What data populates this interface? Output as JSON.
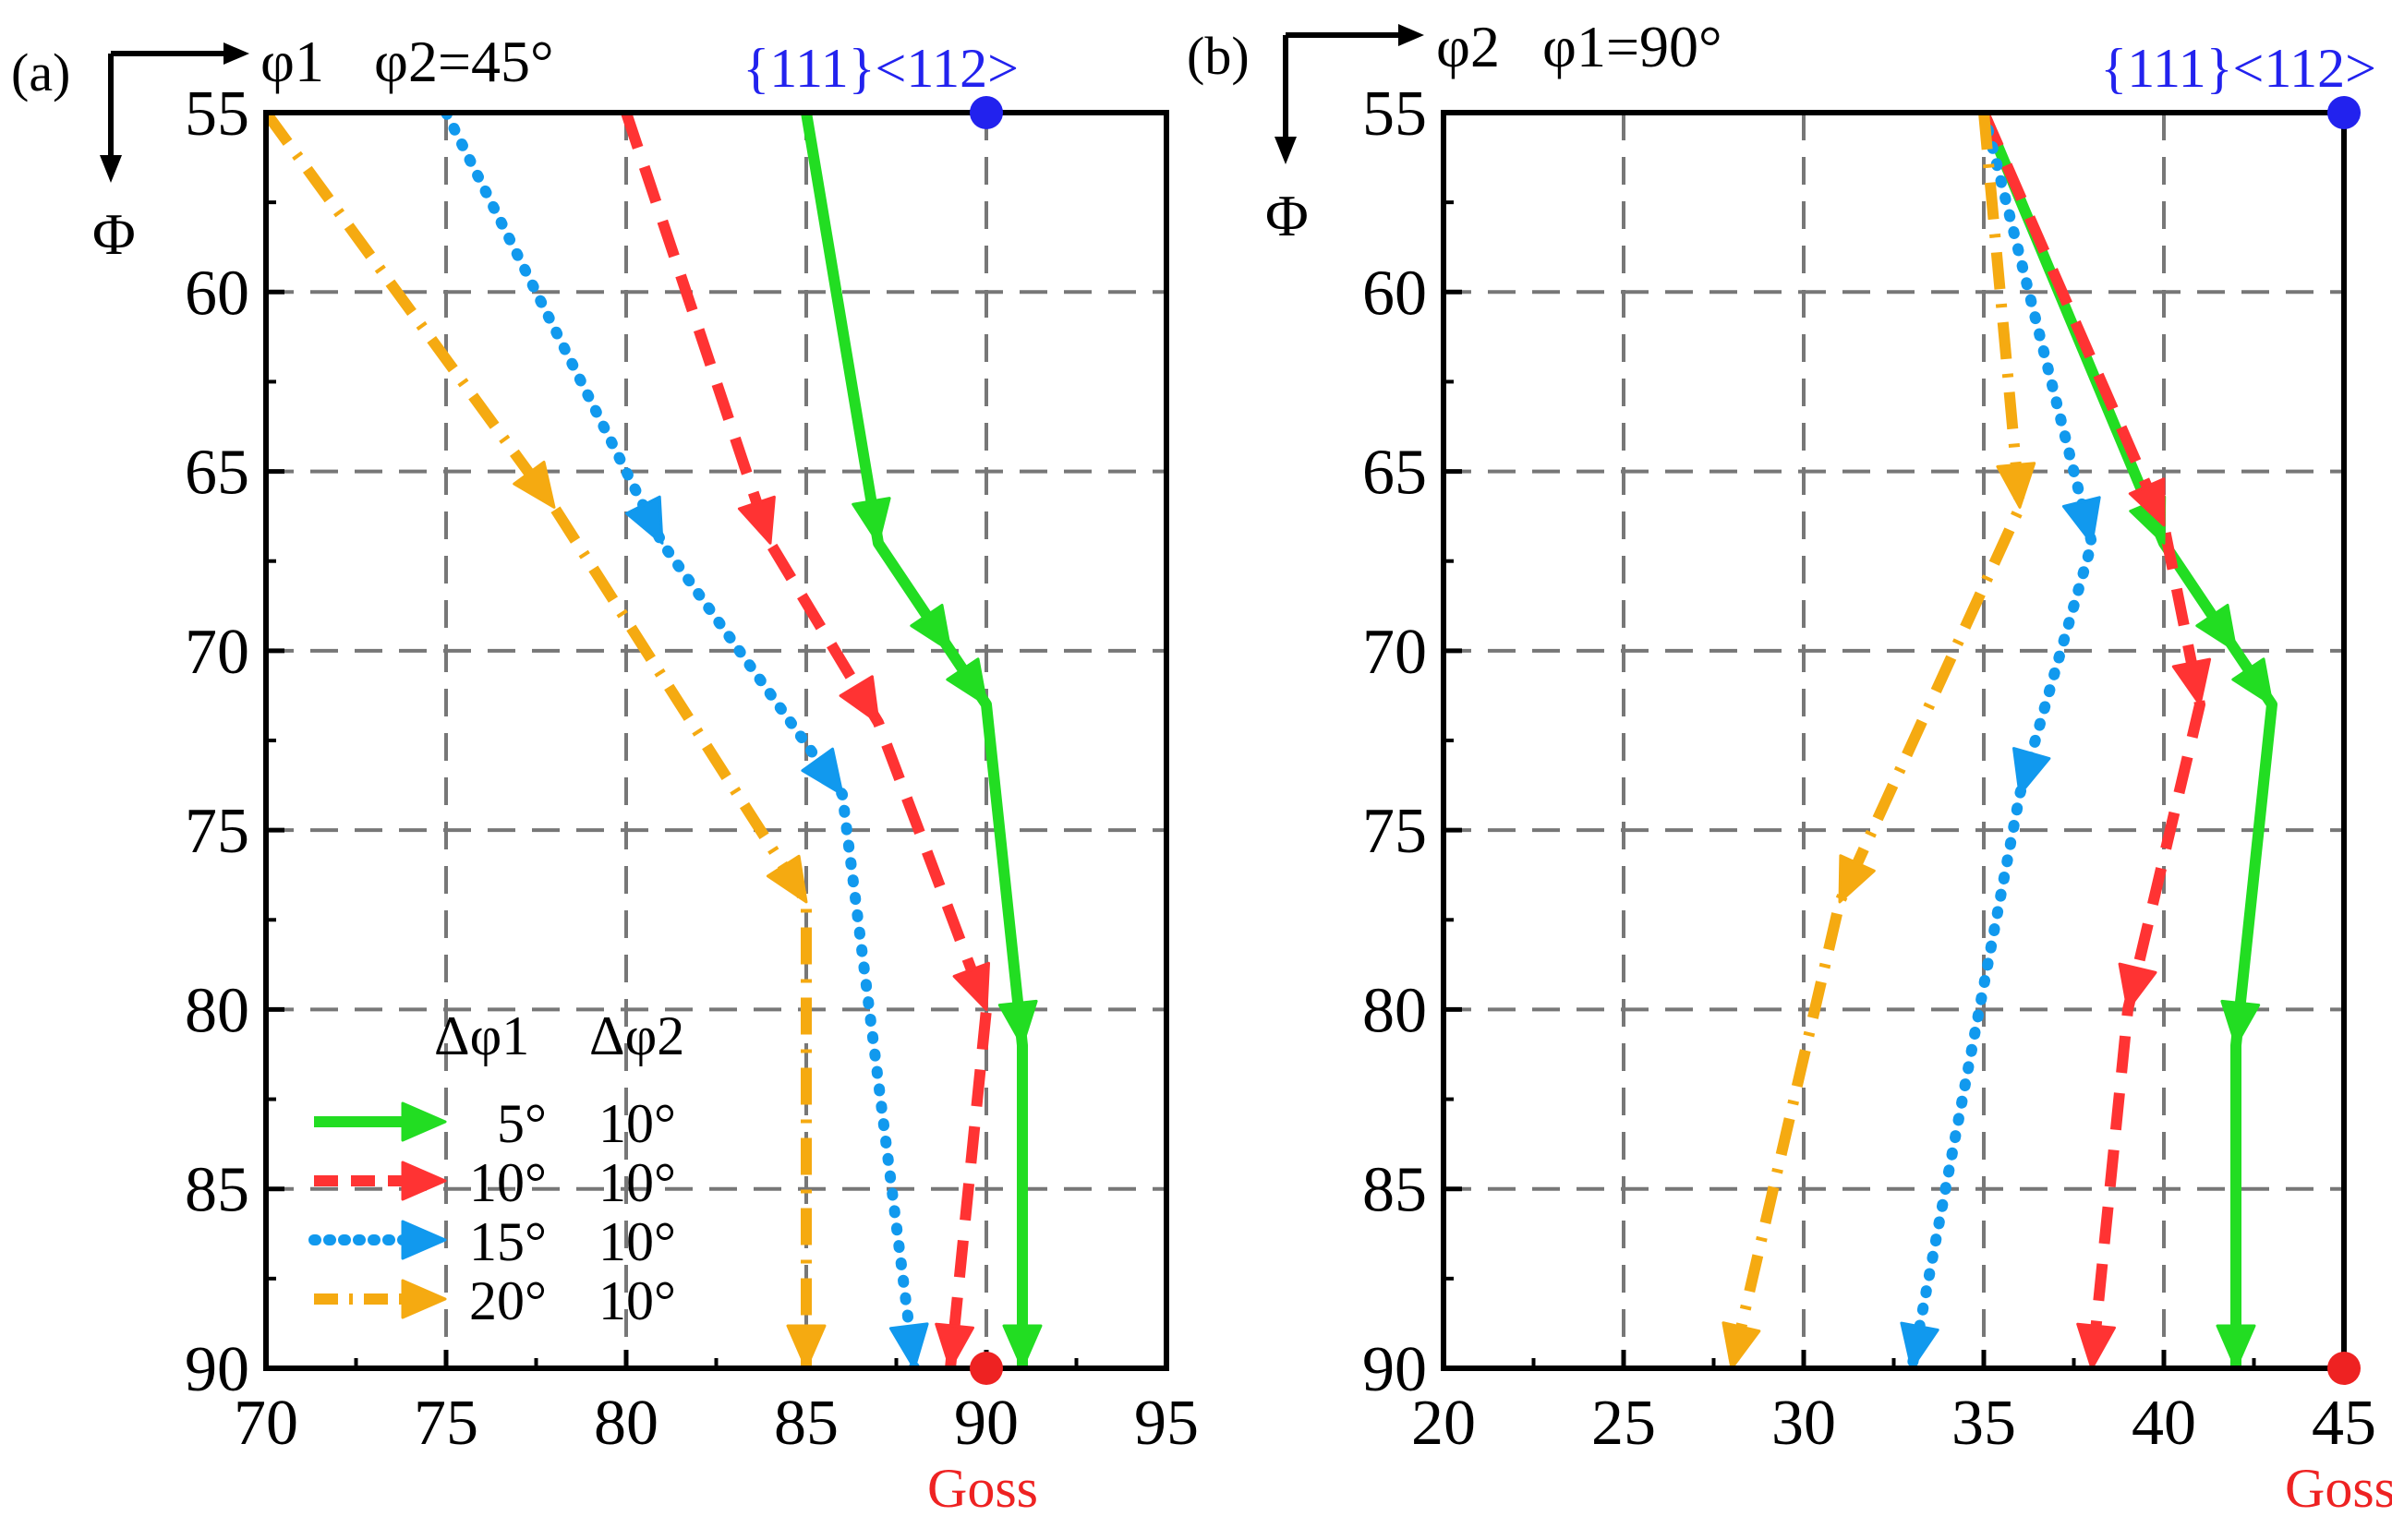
{
  "chart_data": [
    {
      "type": "line",
      "panel_label": "(a)",
      "title": "φ2=45°",
      "axis_arrow_x_label": "φ1",
      "axis_arrow_y_label": "Φ",
      "xlabel": "φ1",
      "ylabel": "Φ",
      "xlim": [
        70,
        95
      ],
      "ylim": [
        55,
        90
      ],
      "y_inverted": true,
      "xticks": [
        "70",
        "75",
        "80",
        "85",
        "90",
        "95"
      ],
      "yticks": [
        "55",
        "60",
        "65",
        "70",
        "75",
        "80",
        "85",
        "90"
      ],
      "grid": true,
      "legend_position": "bottom-left",
      "legend_header": [
        "Δφ1",
        "Δφ2"
      ],
      "series": [
        {
          "name": "5°",
          "name2": "10°",
          "color": "#22dd22",
          "style": "solid",
          "points": [
            [
              85,
              55
            ],
            [
              87,
              67
            ],
            [
              90,
              71.5
            ],
            [
              91,
              81
            ],
            [
              91,
              90
            ]
          ],
          "arrow_points": [
            [
              87,
              67
            ],
            [
              89,
              70
            ],
            [
              90,
              71.5
            ],
            [
              91,
              81
            ],
            [
              91,
              90
            ]
          ]
        },
        {
          "name": "10°",
          "name2": "10°",
          "color": "#ff3333",
          "style": "dashed",
          "points": [
            [
              80,
              55
            ],
            [
              84,
              67
            ],
            [
              87,
              72
            ],
            [
              90,
              80
            ],
            [
              89,
              90
            ]
          ],
          "arrow_points": [
            [
              84,
              67
            ],
            [
              87,
              72
            ],
            [
              90,
              80
            ],
            [
              89,
              90
            ]
          ]
        },
        {
          "name": "15°",
          "name2": "10°",
          "color": "#1199ee",
          "style": "dotted",
          "points": [
            [
              75,
              55
            ],
            [
              81,
              67
            ],
            [
              86,
              74
            ],
            [
              88,
              90
            ]
          ],
          "arrow_points": [
            [
              81,
              67
            ],
            [
              86,
              74
            ],
            [
              88,
              90
            ]
          ]
        },
        {
          "name": "20°",
          "name2": "10°",
          "color": "#f5aa11",
          "style": "dashdot",
          "points": [
            [
              70,
              55
            ],
            [
              78,
              66
            ],
            [
              85,
              77
            ],
            [
              85,
              90
            ]
          ],
          "arrow_points": [
            [
              78,
              66
            ],
            [
              85,
              77
            ],
            [
              85,
              90
            ]
          ]
        }
      ],
      "special_points": [
        {
          "label": "{111}<112>",
          "x": 90,
          "y": 55,
          "color": "#2222ee"
        },
        {
          "label": "Goss",
          "x": 90,
          "y": 90,
          "color": "#ee2222"
        }
      ]
    },
    {
      "type": "line",
      "panel_label": "(b)",
      "title": "φ1=90°",
      "axis_arrow_x_label": "φ2",
      "axis_arrow_y_label": "Φ",
      "xlabel": "φ2",
      "ylabel": "Φ",
      "xlim": [
        20,
        45
      ],
      "ylim": [
        55,
        90
      ],
      "y_inverted": true,
      "xticks": [
        "20",
        "25",
        "30",
        "35",
        "40",
        "45"
      ],
      "yticks": [
        "55",
        "60",
        "65",
        "70",
        "75",
        "80",
        "85",
        "90"
      ],
      "grid": true,
      "series": [
        {
          "name": "5°",
          "name2": "10°",
          "color": "#22dd22",
          "style": "solid",
          "points": [
            [
              35,
              55
            ],
            [
              40,
              67
            ],
            [
              42,
              70
            ],
            [
              43,
              71.5
            ],
            [
              42,
              81
            ],
            [
              42,
              90
            ]
          ],
          "arrow_points": [
            [
              40,
              67
            ],
            [
              42,
              70
            ],
            [
              43,
              71.5
            ],
            [
              42,
              81
            ],
            [
              42,
              90
            ]
          ]
        },
        {
          "name": "10°",
          "name2": "10°",
          "color": "#ff3333",
          "style": "dashed",
          "points": [
            [
              35,
              55
            ],
            [
              40,
              66.5
            ],
            [
              41,
              71.5
            ],
            [
              39,
              80
            ],
            [
              38,
              90
            ]
          ],
          "arrow_points": [
            [
              40,
              66.5
            ],
            [
              41,
              71.5
            ],
            [
              39,
              80
            ],
            [
              38,
              90
            ]
          ]
        },
        {
          "name": "15°",
          "name2": "10°",
          "color": "#1199ee",
          "style": "dotted",
          "points": [
            [
              35,
              55
            ],
            [
              38,
              67
            ],
            [
              36,
              74
            ],
            [
              33,
              90
            ]
          ],
          "arrow_points": [
            [
              38,
              67
            ],
            [
              36,
              74
            ],
            [
              33,
              90
            ]
          ]
        },
        {
          "name": "20°",
          "name2": "10°",
          "color": "#f5aa11",
          "style": "dashdot",
          "points": [
            [
              35,
              55
            ],
            [
              36,
              66
            ],
            [
              31,
              77
            ],
            [
              28,
              90
            ]
          ],
          "arrow_points": [
            [
              36,
              66
            ],
            [
              31,
              77
            ],
            [
              28,
              90
            ]
          ]
        }
      ],
      "special_points": [
        {
          "label": "{111}<112>",
          "x": 45,
          "y": 55,
          "color": "#2222ee"
        },
        {
          "label": "Goss",
          "x": 45,
          "y": 90,
          "color": "#ee2222"
        }
      ]
    }
  ]
}
